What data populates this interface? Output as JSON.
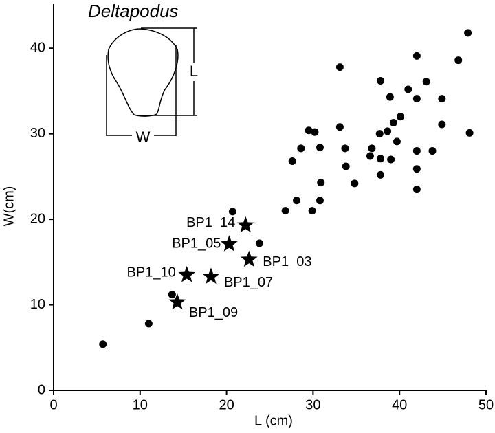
{
  "chart_data": {
    "type": "scatter",
    "title": "Deltapodus",
    "x_label": "L (cm)",
    "y_label": "W(cm)",
    "xlim": [
      0,
      50
    ],
    "ylim": [
      0,
      45
    ],
    "xticks": [
      0,
      10,
      20,
      30,
      40,
      50
    ],
    "yticks": [
      0,
      10,
      20,
      30,
      40
    ],
    "annotations": [
      "L",
      "W"
    ],
    "series": [
      {
        "marker": "circle",
        "color": "#000000",
        "x": [
          5.7,
          11.0,
          13.7,
          20.7,
          23.8,
          26.8,
          28.1,
          27.6,
          28.6,
          29.5,
          30.2,
          29.9,
          30.8,
          30.9,
          30.8,
          33.1,
          33.1,
          33.7,
          33.8,
          34.8,
          36.6,
          36.8,
          37.7,
          37.8,
          37.8,
          37.8,
          38.6,
          38.9,
          39.0,
          39.3,
          39.7,
          40.1,
          41.0,
          42.0,
          42.0,
          42.0,
          42.0,
          42.0,
          43.1,
          43.8,
          44.9,
          44.9,
          46.8,
          47.9,
          48.1
        ],
        "y": [
          5.4,
          7.8,
          11.2,
          20.9,
          17.2,
          21.0,
          22.2,
          26.8,
          28.3,
          30.4,
          30.2,
          21.0,
          22.2,
          24.3,
          28.4,
          37.8,
          30.8,
          28.3,
          26.2,
          24.2,
          27.4,
          28.3,
          30.0,
          36.2,
          27.1,
          25.2,
          30.3,
          34.3,
          27.0,
          31.3,
          29.1,
          32.0,
          35.2,
          39.1,
          34.1,
          28.0,
          25.9,
          23.5,
          36.1,
          28.0,
          34.1,
          31.1,
          38.6,
          41.8,
          30.1
        ]
      },
      {
        "marker": "star",
        "color": "#000000",
        "x": [
          22.2,
          20.3,
          22.6,
          15.4,
          18.2,
          14.3
        ],
        "y": [
          19.3,
          17.1,
          15.3,
          13.5,
          13.3,
          10.3
        ],
        "labels": [
          "BP1  14",
          "BP1_05",
          "BP1  03",
          "BP1_10",
          "BP1_07",
          "BP1_09"
        ]
      }
    ]
  }
}
